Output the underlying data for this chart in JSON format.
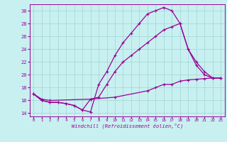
{
  "xlabel": "Windchill (Refroidissement éolien,°C)",
  "bg_color": "#c8f0f0",
  "line_color": "#990099",
  "xlim": [
    -0.5,
    23.5
  ],
  "ylim": [
    13.5,
    31.0
  ],
  "xticks": [
    0,
    1,
    2,
    3,
    4,
    5,
    6,
    7,
    8,
    9,
    10,
    11,
    12,
    13,
    14,
    15,
    16,
    17,
    18,
    19,
    20,
    21,
    22,
    23
  ],
  "yticks": [
    14,
    16,
    18,
    20,
    22,
    24,
    26,
    28,
    30
  ],
  "grid_color": "#a0d4d4",
  "line1_x": [
    0,
    1,
    2,
    3,
    4,
    5,
    6,
    7,
    8,
    9,
    10,
    11,
    12,
    13,
    14,
    15,
    16,
    17,
    18,
    19,
    20,
    21,
    22,
    23
  ],
  "line1_y": [
    17,
    16,
    15.7,
    15.7,
    15.5,
    15.2,
    14.5,
    14.2,
    18.5,
    20.5,
    23,
    25,
    26.5,
    28,
    29.5,
    30,
    30.5,
    30,
    28,
    24,
    22,
    20.5,
    19.5,
    19.5
  ],
  "line2_x": [
    0,
    1,
    2,
    3,
    4,
    5,
    6,
    7,
    8,
    9,
    10,
    11,
    12,
    13,
    14,
    15,
    16,
    17,
    18,
    19,
    20,
    21,
    22,
    23
  ],
  "line2_y": [
    17,
    16,
    15.7,
    15.7,
    15.5,
    15.2,
    14.5,
    16.2,
    16.5,
    18.5,
    20.5,
    22,
    23,
    24,
    25,
    26,
    27,
    27.5,
    28,
    24,
    21.5,
    20,
    19.5,
    19.5
  ],
  "line3_x": [
    0,
    1,
    2,
    7,
    10,
    14,
    15,
    16,
    17,
    18,
    19,
    20,
    21,
    22,
    23
  ],
  "line3_y": [
    17,
    16.2,
    16,
    16.2,
    16.5,
    17.5,
    18,
    18.5,
    18.5,
    19,
    19.2,
    19.3,
    19.4,
    19.5,
    19.5
  ]
}
